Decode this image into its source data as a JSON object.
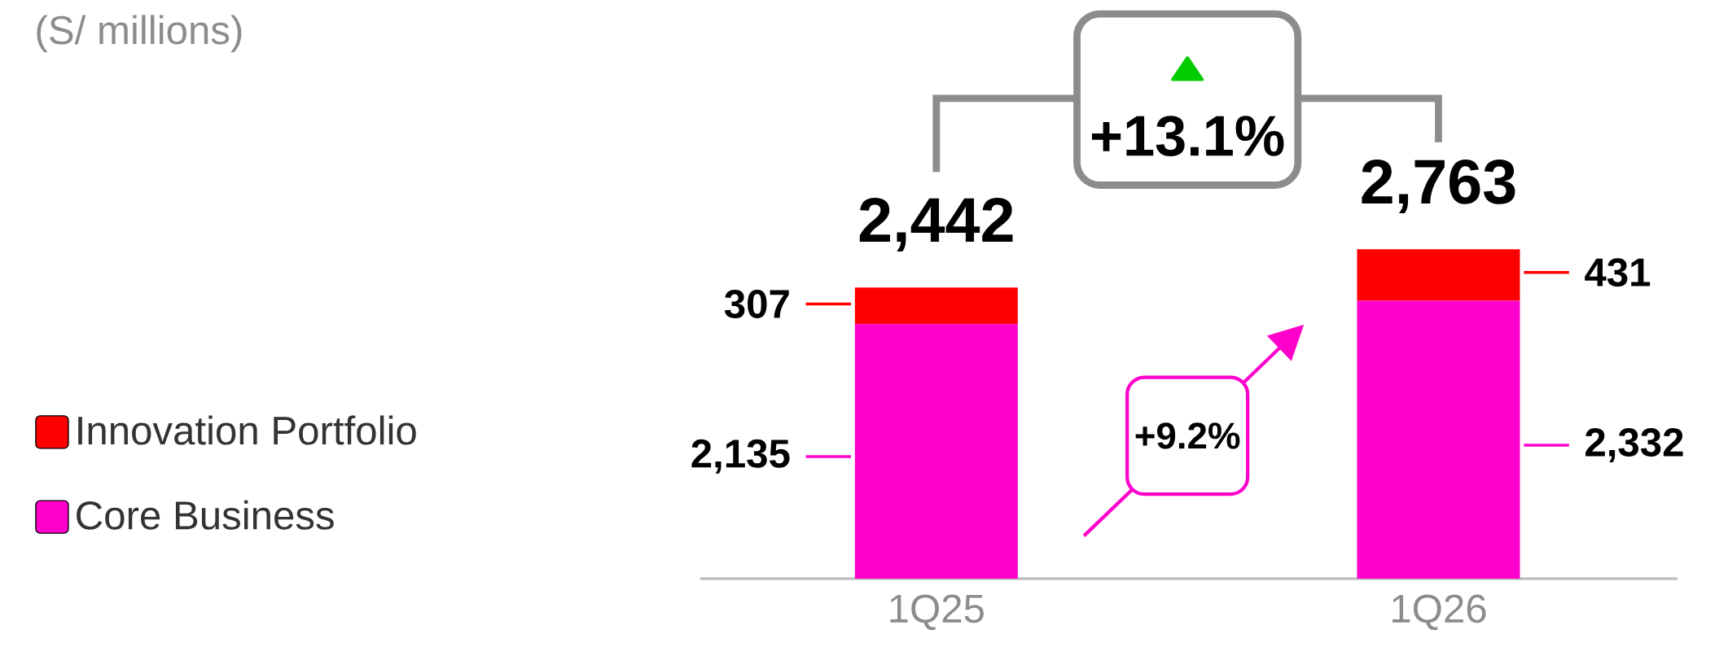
{
  "chart_data": {
    "type": "bar",
    "title": "(S/ millions)",
    "categories": [
      "1Q25",
      "1Q26"
    ],
    "stacked": true,
    "series": [
      {
        "name": "Core Business",
        "color": "#ff00cc",
        "values": [
          2135,
          2332
        ],
        "value_labels": [
          "2,135",
          "2,332"
        ]
      },
      {
        "name": "Innovation Portfolio",
        "color": "#ff0000",
        "values": [
          307,
          431
        ],
        "value_labels": [
          "307",
          "431"
        ]
      }
    ],
    "totals": [
      "2,442",
      "2,763"
    ],
    "annotations": [
      "+13.1%",
      "+9.2%"
    ],
    "legend": "left",
    "tick_labels": "x"
  }
}
